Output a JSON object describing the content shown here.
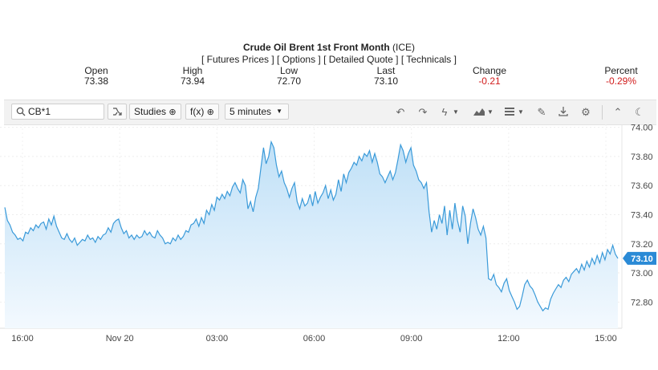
{
  "header": {
    "title": "Crude Oil Brent 1st Front Month",
    "exchange": "(ICE)",
    "links": [
      "[ Futures Prices ]",
      "[ Options ]",
      "[ Detailed Quote ]",
      "[ Technicals ]"
    ]
  },
  "stats": {
    "open": {
      "label": "Open",
      "value": "73.38"
    },
    "high": {
      "label": "High",
      "value": "73.94"
    },
    "low": {
      "label": "Low",
      "value": "72.70"
    },
    "last": {
      "label": "Last",
      "value": "73.10"
    },
    "change": {
      "label": "Change",
      "value": "-0.21"
    },
    "percent": {
      "label": "Percent",
      "value": "-0.29%"
    }
  },
  "toolbar": {
    "symbol": "CB*1",
    "studies_label": "Studies",
    "fx_label": "f(x)",
    "interval": "5 minutes",
    "icons": [
      "search-icon",
      "compare-icon",
      "undo-icon",
      "redo-icon",
      "bolt-icon",
      "chart-type-icon",
      "bars-icon",
      "pencil-icon",
      "download-icon",
      "gear-icon",
      "collapse-icon",
      "theme-icon"
    ]
  },
  "colors": {
    "line": "#3a9ad9",
    "area_top": "#bfe0f7",
    "area_bottom": "#f3f9fe",
    "last_badge": "#2a8ad6",
    "negative": "#d11c1c"
  },
  "chart_data": {
    "type": "area",
    "xlabels": [
      "16:00",
      "Nov 20",
      "03:00",
      "06:00",
      "09:00",
      "12:00",
      "15:00"
    ],
    "ylabels": [
      "74.00",
      "73.80",
      "73.60",
      "73.40",
      "73.20",
      "73.00",
      "72.80"
    ],
    "ylim": [
      72.62,
      74.02
    ],
    "last_value": "73.10",
    "grid": true,
    "series": [
      {
        "values": [
          73.45,
          73.36,
          73.33,
          73.28,
          73.26,
          73.23,
          73.24,
          73.22,
          73.28,
          73.27,
          73.31,
          73.29,
          73.33,
          73.31,
          73.34,
          73.35,
          73.3,
          73.37,
          73.33,
          73.39,
          73.32,
          73.28,
          73.24,
          73.23,
          73.27,
          73.23,
          73.21,
          73.24,
          73.19,
          73.21,
          73.23,
          73.22,
          73.26,
          73.23,
          73.24,
          73.21,
          73.25,
          73.23,
          73.26,
          73.27,
          73.31,
          73.28,
          73.34,
          73.36,
          73.37,
          73.31,
          73.27,
          73.29,
          73.24,
          73.26,
          73.23,
          73.26,
          73.24,
          73.25,
          73.29,
          73.26,
          73.28,
          73.25,
          73.24,
          73.29,
          73.26,
          73.24,
          73.2,
          73.21,
          73.2,
          73.24,
          73.22,
          73.26,
          73.23,
          73.25,
          73.29,
          73.28,
          73.33,
          73.34,
          73.37,
          73.32,
          73.38,
          73.34,
          73.43,
          73.4,
          73.47,
          73.43,
          73.52,
          73.5,
          73.54,
          73.51,
          73.56,
          73.53,
          73.59,
          73.62,
          73.58,
          73.55,
          73.64,
          73.6,
          73.44,
          73.49,
          73.42,
          73.52,
          73.58,
          73.72,
          73.86,
          73.75,
          73.8,
          73.9,
          73.86,
          73.74,
          73.66,
          73.7,
          73.62,
          73.58,
          73.52,
          73.58,
          73.62,
          73.49,
          73.44,
          73.51,
          73.46,
          73.48,
          73.54,
          73.46,
          73.56,
          73.48,
          73.52,
          73.55,
          73.6,
          73.51,
          73.57,
          73.5,
          73.54,
          73.64,
          73.56,
          73.68,
          73.62,
          73.69,
          73.72,
          73.76,
          73.74,
          73.8,
          73.77,
          73.82,
          73.8,
          73.84,
          73.76,
          73.82,
          73.76,
          73.68,
          73.66,
          73.62,
          73.66,
          73.7,
          73.64,
          73.69,
          73.78,
          73.88,
          73.84,
          73.76,
          73.82,
          73.86,
          73.74,
          73.7,
          73.64,
          73.62,
          73.58,
          73.62,
          73.42,
          73.28,
          73.36,
          73.3,
          73.4,
          73.34,
          73.46,
          73.26,
          73.43,
          73.3,
          73.48,
          73.36,
          73.28,
          73.46,
          73.39,
          73.2,
          73.34,
          73.44,
          73.38,
          73.3,
          73.26,
          73.32,
          73.24,
          72.96,
          72.95,
          72.99,
          72.92,
          72.9,
          72.87,
          72.93,
          72.96,
          72.88,
          72.84,
          72.8,
          72.75,
          72.77,
          72.84,
          72.92,
          72.95,
          72.91,
          72.89,
          72.85,
          72.8,
          72.77,
          72.74,
          72.76,
          72.75,
          72.82,
          72.86,
          72.89,
          72.92,
          72.9,
          72.95,
          72.97,
          72.94,
          72.99,
          73.01,
          73.03,
          73.0,
          73.06,
          73.02,
          73.08,
          73.04,
          73.1,
          73.06,
          73.12,
          73.07,
          73.14,
          73.09,
          73.16,
          73.13,
          73.19,
          73.13,
          73.1
        ]
      }
    ]
  }
}
